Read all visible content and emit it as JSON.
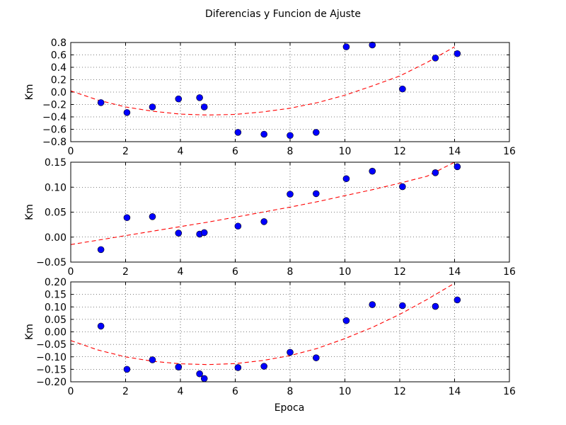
{
  "figure": {
    "title": "Diferencias y Funcion de Ajuste",
    "xlabel": "Epoca"
  },
  "chart_data": [
    {
      "type": "scatter",
      "ylabel": "Km",
      "xlim": [
        0,
        16
      ],
      "ylim": [
        -0.8,
        0.8
      ],
      "xticks": [
        "0",
        "2",
        "4",
        "6",
        "8",
        "10",
        "12",
        "14",
        "16"
      ],
      "yticks": [
        "−0.8",
        "−0.6",
        "−0.4",
        "−0.2",
        "0.0",
        "0.2",
        "0.4",
        "0.6",
        "0.8"
      ],
      "grid": true,
      "series": [
        {
          "kind": "points",
          "color": "#0000ff",
          "x": [
            1.1,
            2.05,
            2.98,
            3.93,
            4.7,
            4.87,
            6.1,
            7.05,
            8.0,
            8.95,
            10.05,
            11.0,
            12.1,
            13.3,
            14.1
          ],
          "y": [
            -0.17,
            -0.33,
            -0.24,
            -0.11,
            -0.09,
            -0.24,
            -0.65,
            -0.68,
            -0.7,
            -0.65,
            0.73,
            0.76,
            0.05,
            0.55,
            0.62
          ]
        },
        {
          "kind": "fit-line",
          "color": "#ff0000",
          "dashed": true,
          "x": [
            0,
            1,
            2,
            3,
            4,
            5,
            6,
            7,
            8,
            9,
            10,
            11,
            12,
            13,
            14
          ],
          "y": [
            0.02,
            -0.13,
            -0.24,
            -0.31,
            -0.355,
            -0.37,
            -0.36,
            -0.32,
            -0.26,
            -0.17,
            -0.05,
            0.1,
            0.26,
            0.48,
            0.73
          ]
        }
      ]
    },
    {
      "type": "scatter",
      "ylabel": "Km",
      "xlim": [
        0,
        16
      ],
      "ylim": [
        -0.05,
        0.15
      ],
      "xticks": [
        "0",
        "2",
        "4",
        "6",
        "8",
        "10",
        "12",
        "14",
        "16"
      ],
      "yticks": [
        "−0.05",
        "0.00",
        "0.05",
        "0.10",
        "0.15"
      ],
      "grid": true,
      "series": [
        {
          "kind": "points",
          "color": "#0000ff",
          "x": [
            1.1,
            2.05,
            2.98,
            3.93,
            4.7,
            4.87,
            6.1,
            7.05,
            8.0,
            8.95,
            10.05,
            11.0,
            12.1,
            13.3,
            14.1
          ],
          "y": [
            -0.025,
            0.039,
            0.041,
            0.008,
            0.006,
            0.009,
            0.022,
            0.031,
            0.086,
            0.087,
            0.117,
            0.132,
            0.101,
            0.129,
            0.141
          ]
        },
        {
          "kind": "fit-line",
          "color": "#ff0000",
          "dashed": true,
          "x": [
            0,
            1,
            2,
            3,
            4,
            5,
            6,
            7,
            8,
            9,
            10,
            11,
            12,
            13,
            14
          ],
          "y": [
            -0.015,
            -0.006,
            0.003,
            0.012,
            0.021,
            0.03,
            0.04,
            0.05,
            0.06,
            0.071,
            0.083,
            0.095,
            0.108,
            0.122,
            0.15
          ]
        }
      ]
    },
    {
      "type": "scatter",
      "ylabel": "Km",
      "xlim": [
        0,
        16
      ],
      "ylim": [
        -0.2,
        0.2
      ],
      "xticks": [
        "0",
        "2",
        "4",
        "6",
        "8",
        "10",
        "12",
        "14",
        "16"
      ],
      "yticks": [
        "−0.20",
        "−0.15",
        "−0.10",
        "−0.05",
        "0.00",
        "0.05",
        "0.10",
        "0.15",
        "0.20"
      ],
      "grid": true,
      "series": [
        {
          "kind": "points",
          "color": "#0000ff",
          "x": [
            1.1,
            2.05,
            2.98,
            3.93,
            4.7,
            4.87,
            6.1,
            7.05,
            8.0,
            8.95,
            10.05,
            11.0,
            12.1,
            13.3,
            14.1
          ],
          "y": [
            0.023,
            -0.15,
            -0.112,
            -0.141,
            -0.168,
            -0.187,
            -0.143,
            -0.138,
            -0.082,
            -0.104,
            0.045,
            0.109,
            0.105,
            0.102,
            0.128
          ]
        },
        {
          "kind": "fit-line",
          "color": "#ff0000",
          "dashed": true,
          "x": [
            0,
            1,
            2,
            3,
            4,
            5,
            6,
            7,
            8,
            9,
            10,
            11,
            12,
            13,
            14
          ],
          "y": [
            -0.035,
            -0.073,
            -0.1,
            -0.118,
            -0.128,
            -0.131,
            -0.127,
            -0.115,
            -0.095,
            -0.066,
            -0.027,
            0.018,
            0.07,
            0.13,
            0.195
          ]
        }
      ]
    }
  ]
}
